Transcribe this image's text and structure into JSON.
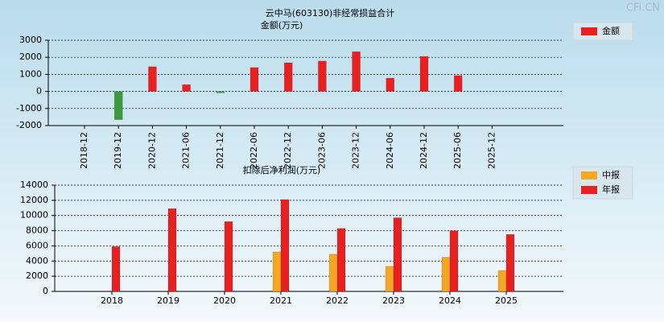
{
  "watermark": "CFi.CN",
  "chart_data": [
    {
      "type": "bar",
      "title": "云中马(603130)非经常损益合计",
      "ylabel": "金额(万元)",
      "categories": [
        "2018-12",
        "2019-12",
        "2020-12",
        "2021-06",
        "2021-12",
        "2022-06",
        "2022-12",
        "2023-06",
        "2023-12",
        "2024-06",
        "2024-12",
        "2025-06",
        "2025-12"
      ],
      "series": [
        {
          "name": "金额",
          "color": "#e82020",
          "negative_color": "#3a9a3a",
          "values": [
            null,
            -1650,
            1450,
            400,
            -80,
            1400,
            1680,
            1780,
            2330,
            780,
            2050,
            930,
            null
          ]
        }
      ],
      "ylim": [
        -2000,
        3000
      ],
      "yticks": [
        -2000,
        -1000,
        0,
        1000,
        2000,
        3000
      ],
      "grid": true
    },
    {
      "type": "bar",
      "title": "扣除后净利润(万元)",
      "categories": [
        "2018",
        "2019",
        "2020",
        "2021",
        "2022",
        "2023",
        "2024",
        "2025"
      ],
      "series": [
        {
          "name": "中报",
          "color": "#f5a623",
          "values": [
            null,
            null,
            null,
            5200,
            4900,
            3300,
            4500,
            2750
          ]
        },
        {
          "name": "年报",
          "color": "#e82020",
          "values": [
            5900,
            10900,
            9200,
            12100,
            8300,
            9700,
            8000,
            7500
          ]
        }
      ],
      "ylim": [
        0,
        14000
      ],
      "yticks": [
        0,
        2000,
        4000,
        6000,
        8000,
        10000,
        12000,
        14000
      ],
      "grid": true
    }
  ]
}
